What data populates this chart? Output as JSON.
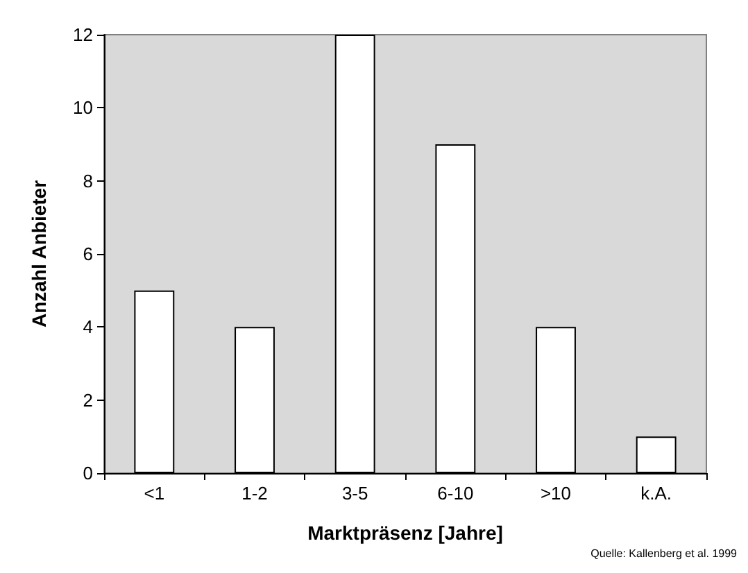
{
  "chart_data": {
    "type": "bar",
    "xlabel": "Marktpräsenz [Jahre]",
    "ylabel": "Anzahl Anbieter",
    "categories": [
      "<1",
      "1-2",
      "3-5",
      "6-10",
      ">10",
      "k.A."
    ],
    "values": [
      5,
      4,
      12,
      9,
      4,
      1
    ],
    "color": "#ffffff",
    "ylim": [
      0,
      12
    ],
    "yticks": [
      0,
      2,
      4,
      6,
      8,
      10,
      12
    ],
    "annotations": [
      "Quelle: Kallenberg et al. 1999"
    ]
  }
}
